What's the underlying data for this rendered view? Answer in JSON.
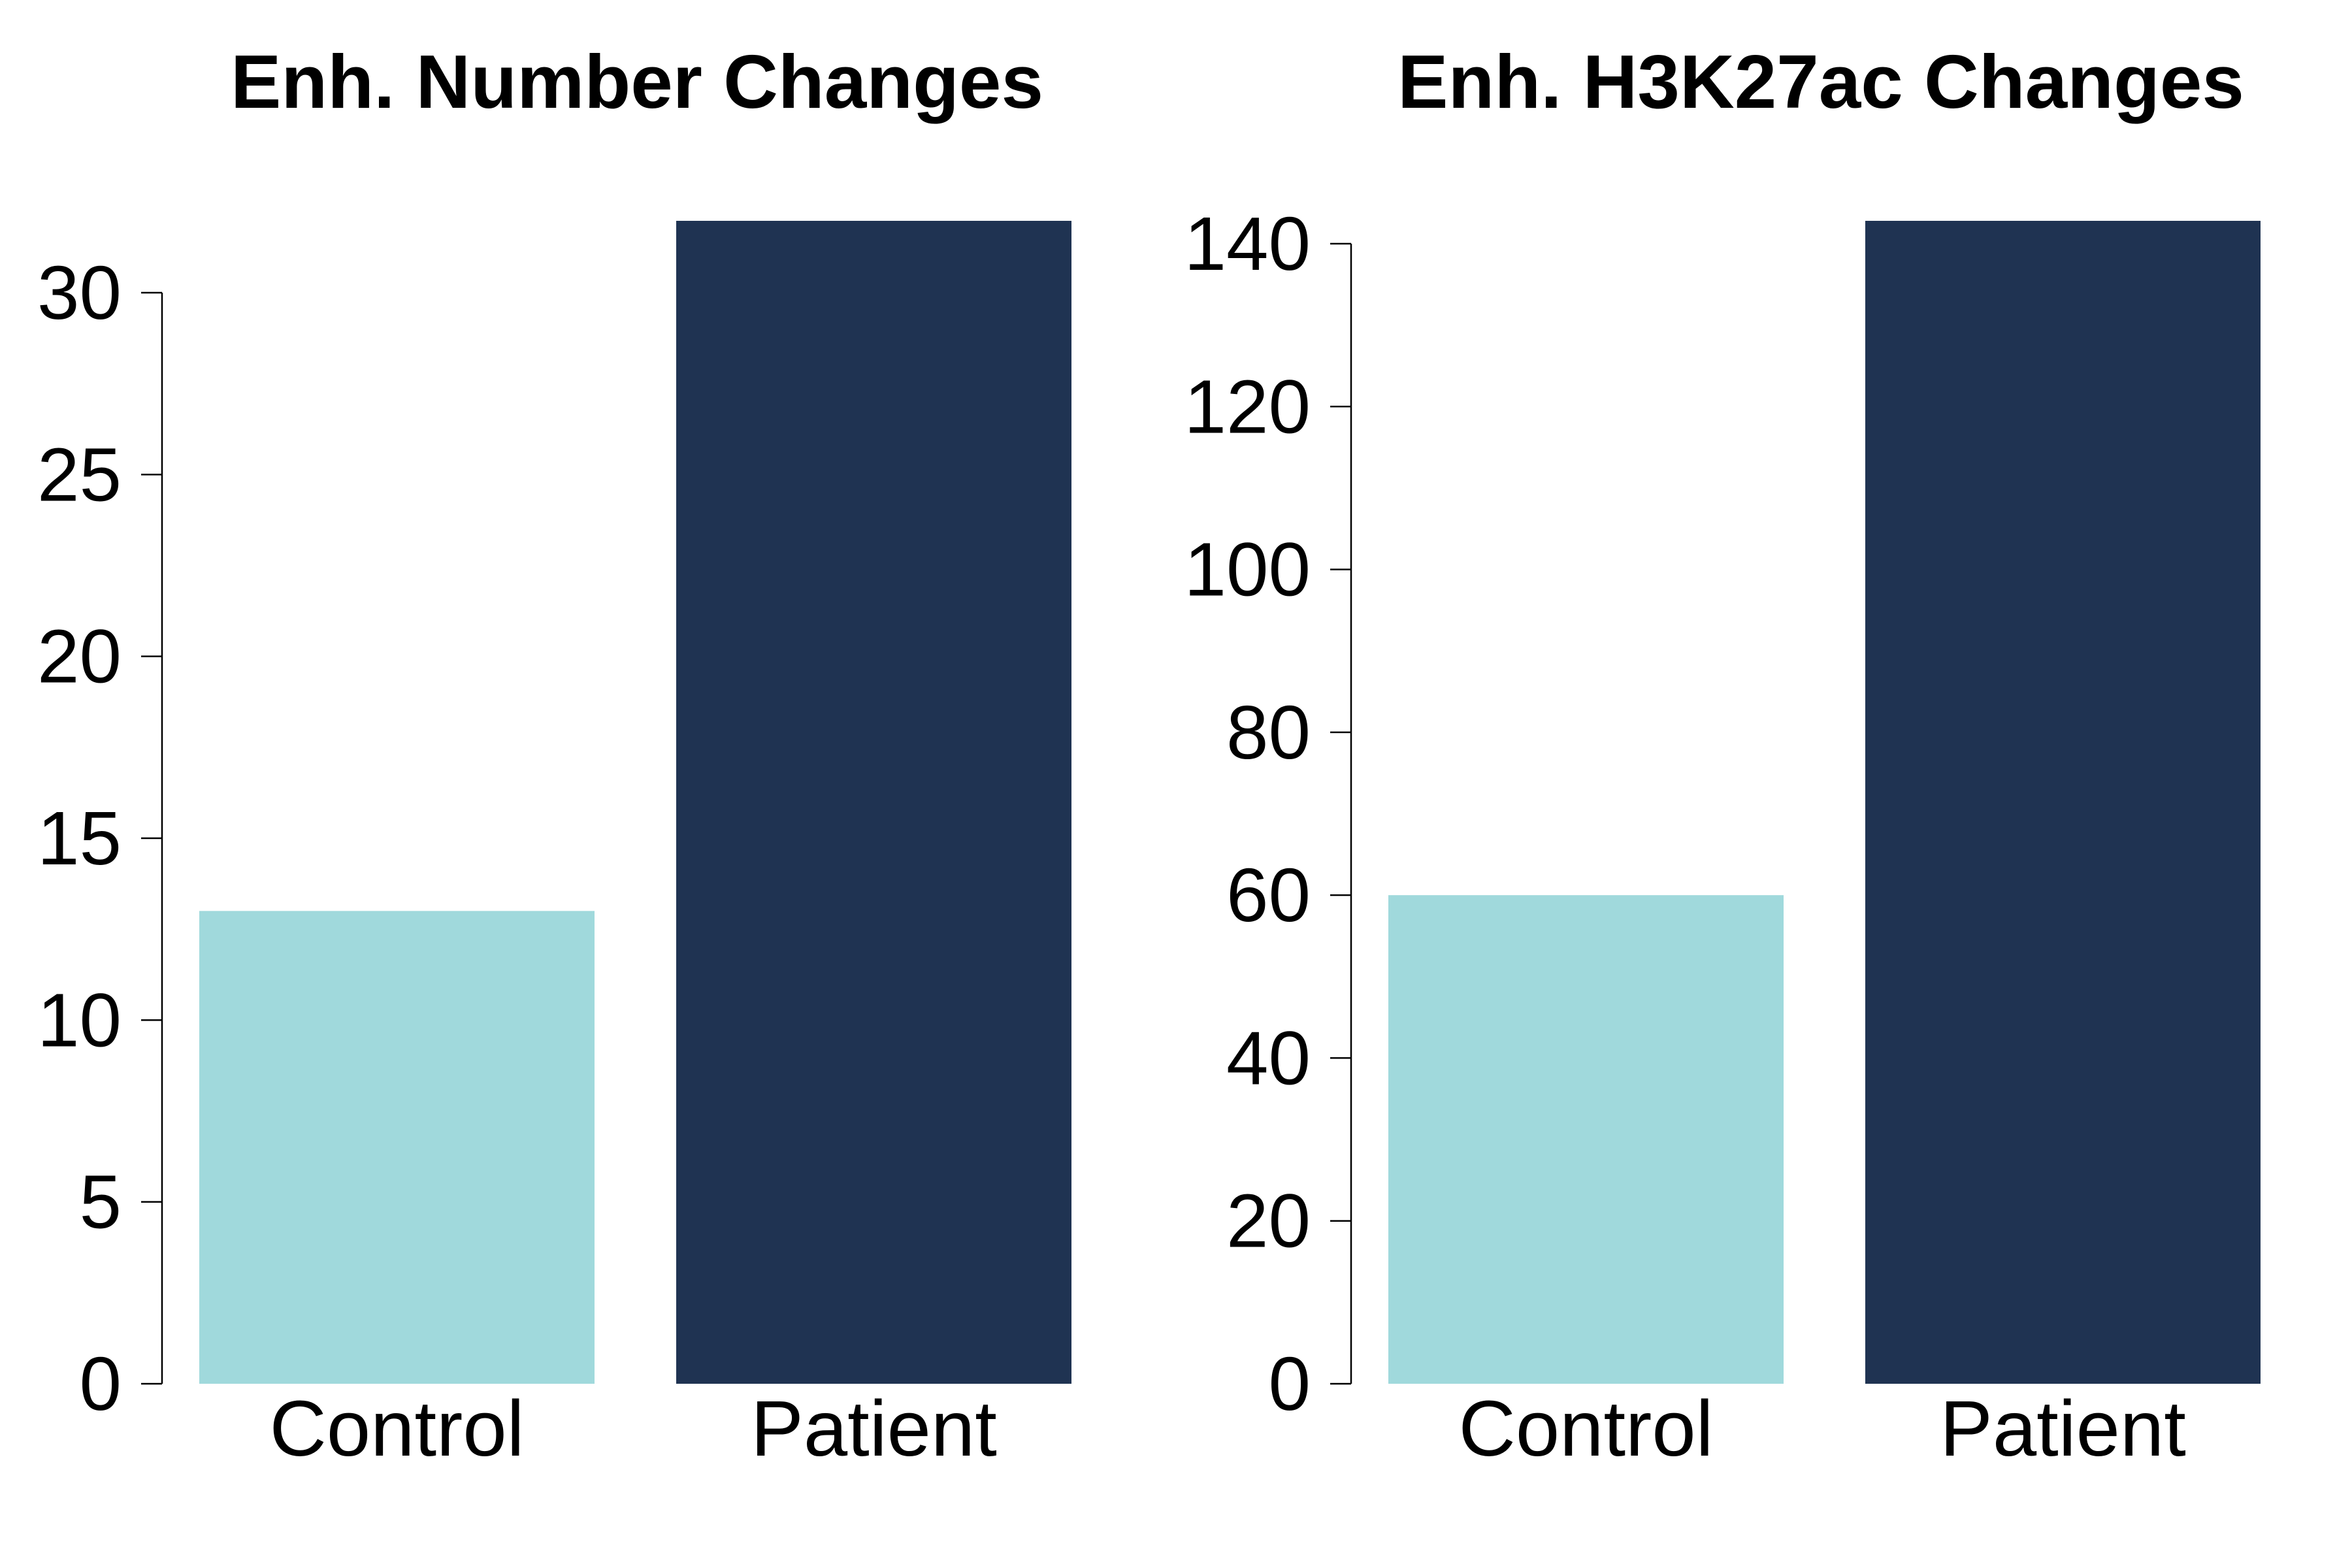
{
  "colors": {
    "control": "#a0d9dc",
    "patient": "#1f3352"
  },
  "chart_data": [
    {
      "type": "bar",
      "title": "Enh. Number Changes",
      "xlabel": "",
      "ylabel": "",
      "categories": [
        "Control",
        "Patient"
      ],
      "values": [
        13,
        32
      ],
      "ylim": [
        0,
        30
      ],
      "yticks": [
        "0",
        "5",
        "10",
        "15",
        "20",
        "25",
        "30"
      ],
      "grid": false,
      "legend": "none"
    },
    {
      "type": "bar",
      "title": "Enh. H3K27ac Changes",
      "xlabel": "",
      "ylabel": "",
      "categories": [
        "Control",
        "Patient"
      ],
      "values": [
        60,
        143
      ],
      "ylim": [
        0,
        140
      ],
      "yticks": [
        "0",
        "20",
        "40",
        "60",
        "80",
        "100",
        "120",
        "140"
      ],
      "grid": false,
      "legend": "none"
    }
  ]
}
